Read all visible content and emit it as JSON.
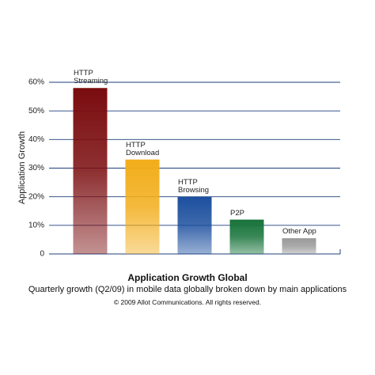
{
  "chart_data": {
    "type": "bar",
    "title": "Application Growth Global",
    "subtitle": "Quarterly growth (Q2/09) in mobile data globally broken down by main applications",
    "note": "© 2009 Allot Communications. All rights reserved.",
    "y_label": "Application Growth",
    "categories": [
      "HTTP Streaming",
      "HTTP Download",
      "HTTP Browsing",
      "P2P",
      "Other App"
    ],
    "values": [
      58,
      33,
      20,
      12,
      5.5
    ],
    "colors": [
      "#7a0c0e",
      "#f2ad1a",
      "#1c4f9e",
      "#17733a",
      "#9a9a9a"
    ],
    "ylim": [
      0,
      60
    ],
    "yticks": [
      0,
      {
        "value": 10,
        "label": "10%"
      },
      {
        "value": 20,
        "label": "20%"
      },
      {
        "value": 30,
        "label": "30%"
      },
      {
        "value": 40,
        "label": "40%"
      },
      {
        "value": 50,
        "label": "50%"
      },
      {
        "value": 60,
        "label": "60%"
      }
    ],
    "grid": true
  }
}
